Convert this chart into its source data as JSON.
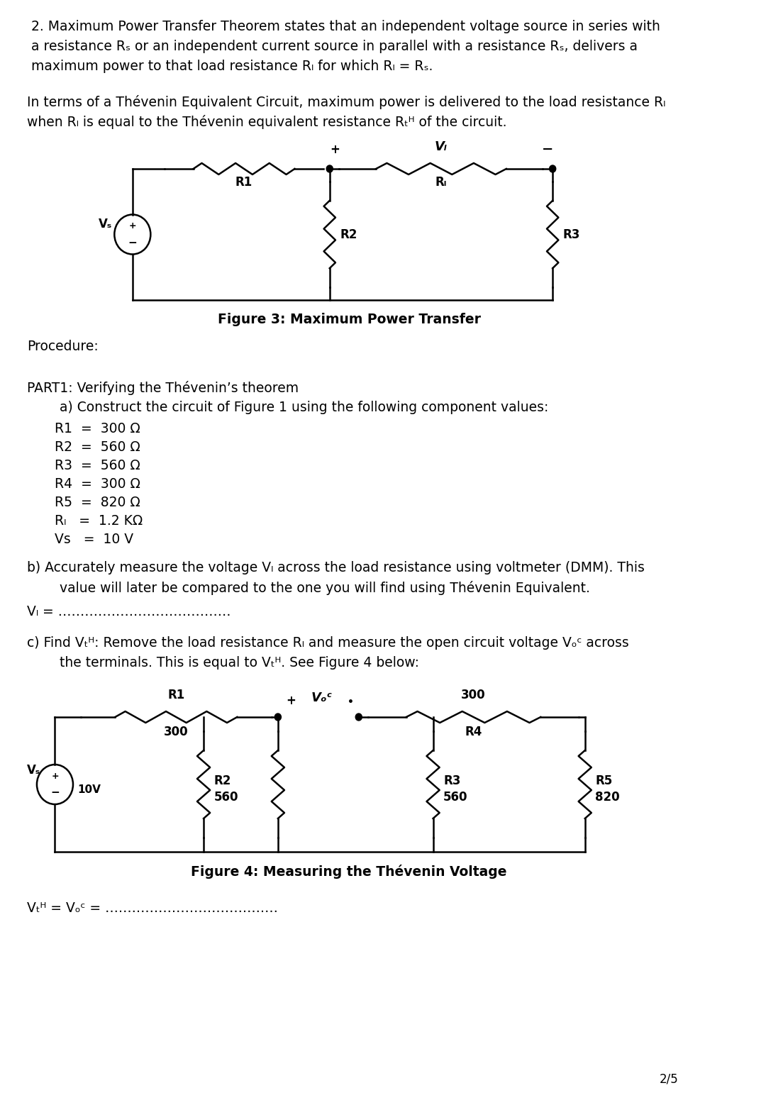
{
  "bg_color": "#ffffff",
  "text_color": "#000000",
  "page_number": "2/5",
  "fig3_caption": "Figure 3: Maximum Power Transfer",
  "fig4_caption": "Figure 4: Measuring the Thévenin Voltage",
  "procedure_label": "Procedure:",
  "part1_line1": "PART1: Verifying the Thévenin’s theorem",
  "part1_a": "        a) Construct the circuit of Figure 1 using the following component values:",
  "components": [
    "R1  =  300 Ω",
    "R2  =  560 Ω",
    "R3  =  560 Ω",
    "R4  =  300 Ω",
    "R5  =  820 Ω",
    "Rₗ   =  1.2 KΩ",
    "Vs   =  10 V"
  ]
}
